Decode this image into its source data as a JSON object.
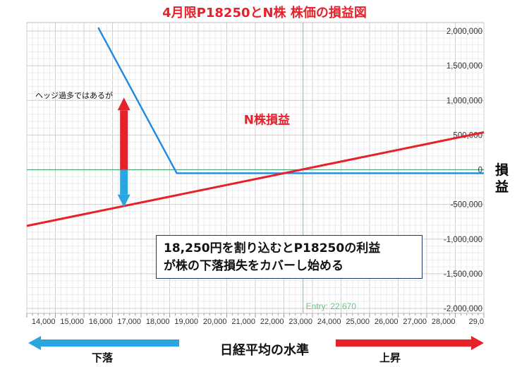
{
  "chart_data": {
    "type": "line",
    "title": "4月限P18250とN株 株価の損益図",
    "xlabel": "日経平均の水準",
    "ylabel": "損益",
    "x_ticks": [
      "14,000",
      "15,000",
      "16,000",
      "17,000",
      "18,000",
      "19,000",
      "20,000",
      "21,000",
      "22,000",
      "23,000",
      "24,000",
      "25,000",
      "26,000",
      "27,000",
      "28,000",
      "29,0"
    ],
    "y_ticks": [
      "2,000,000",
      "1,500,000",
      "1,000,000",
      "500,000",
      "0",
      "-500,000",
      "-1,000,000",
      "-1,500,000",
      "-2,000,000"
    ],
    "xlim": [
      13000,
      29000
    ],
    "ylim": [
      -2000000,
      2000000
    ],
    "grid": true,
    "series": [
      {
        "name": "",
        "color": "#1e88e5",
        "points": [
          [
            15500,
            2050000
          ],
          [
            18250,
            -50000
          ],
          [
            29000,
            -50000
          ]
        ]
      },
      {
        "name": "N株損益",
        "color": "#e8202a",
        "points": [
          [
            13000,
            -810000
          ],
          [
            29000,
            540000
          ]
        ]
      }
    ],
    "entry_marker": {
      "x": 22670,
      "label": "Entry: 22,670"
    },
    "annotations": {
      "series_label": "N株損益",
      "hedge_note": "ヘッジ過多ではあるが",
      "note_line1": "18,250円を割り込むとP18250の利益",
      "note_line2": "が株の下落損失をカバーし始める",
      "left_arrow": "下落",
      "right_arrow": "上昇"
    },
    "colors": {
      "up_arrow": "#e8202a",
      "down_arrow": "#29a6e0",
      "grid": "#d3d3d3",
      "zero_line": "#4aa876",
      "entry_line": "#86d394"
    }
  }
}
